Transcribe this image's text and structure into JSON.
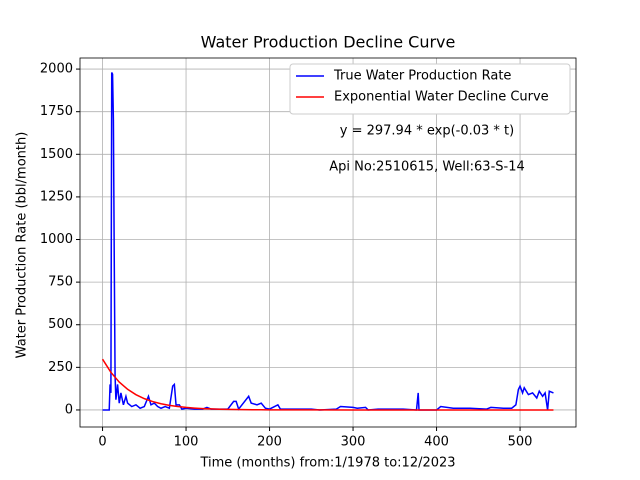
{
  "chart_data": {
    "type": "line",
    "title": "Water Production Decline Curve",
    "x_label": "Time (months) from:1/1978 to:12/2023",
    "y_label": "Water Production Rate (bbl/month)",
    "annotations": [
      "y = 297.94 * exp(-0.03 * t)",
      "Api No:2510615, Well:63-S-14"
    ],
    "xlim": [
      -27,
      567
    ],
    "ylim": [
      -100,
      2065
    ],
    "xticks": [
      0,
      100,
      200,
      300,
      400,
      500
    ],
    "yticks": [
      0,
      250,
      500,
      750,
      1000,
      1250,
      1500,
      1750,
      2000
    ],
    "grid": true,
    "legend": "upper right",
    "series": [
      {
        "name": "True Water Production Rate",
        "color": "#0000ff",
        "x": [
          0,
          8,
          9,
          10,
          11,
          12,
          13,
          14,
          15,
          16,
          18,
          20,
          22,
          25,
          28,
          30,
          35,
          40,
          45,
          50,
          55,
          58,
          62,
          66,
          70,
          75,
          80,
          84,
          86,
          88,
          92,
          95,
          100,
          110,
          120,
          125,
          130,
          150,
          157,
          160,
          163,
          175,
          178,
          185,
          190,
          195,
          200,
          210,
          213,
          230,
          250,
          260,
          280,
          285,
          300,
          305,
          315,
          318,
          330,
          360,
          376,
          378,
          379,
          400,
          405,
          420,
          440,
          460,
          465,
          480,
          490,
          495,
          498,
          500,
          503,
          505,
          510,
          515,
          520,
          523,
          527,
          530,
          533,
          535,
          540
        ],
        "values": [
          0,
          0,
          150,
          100,
          1980,
          1970,
          1700,
          900,
          200,
          60,
          150,
          40,
          100,
          30,
          80,
          40,
          20,
          30,
          10,
          20,
          80,
          30,
          40,
          20,
          10,
          20,
          10,
          140,
          150,
          30,
          30,
          5,
          10,
          5,
          5,
          15,
          5,
          5,
          50,
          50,
          5,
          80,
          40,
          30,
          40,
          10,
          5,
          30,
          5,
          5,
          5,
          0,
          5,
          20,
          15,
          10,
          15,
          0,
          5,
          5,
          0,
          100,
          0,
          0,
          20,
          10,
          10,
          5,
          15,
          10,
          10,
          30,
          120,
          140,
          100,
          130,
          90,
          100,
          70,
          110,
          80,
          100,
          0,
          110,
          100
        ]
      },
      {
        "name": "Exponential Water Decline Curve",
        "color": "#ff0000",
        "x": [
          0,
          10,
          20,
          30,
          40,
          50,
          60,
          70,
          80,
          90,
          100,
          110,
          120,
          130,
          140,
          150,
          160,
          170,
          180,
          190,
          200,
          250,
          300,
          350,
          400,
          450,
          540
        ],
        "values": [
          297.94,
          220.72,
          163.51,
          121.13,
          89.73,
          66.48,
          49.25,
          36.48,
          27.03,
          20.02,
          14.83,
          10.99,
          8.14,
          6.03,
          4.47,
          3.31,
          2.45,
          1.82,
          1.35,
          1.0,
          0.74,
          0.16,
          0.04,
          0.008,
          0.002,
          0,
          0
        ]
      }
    ]
  }
}
